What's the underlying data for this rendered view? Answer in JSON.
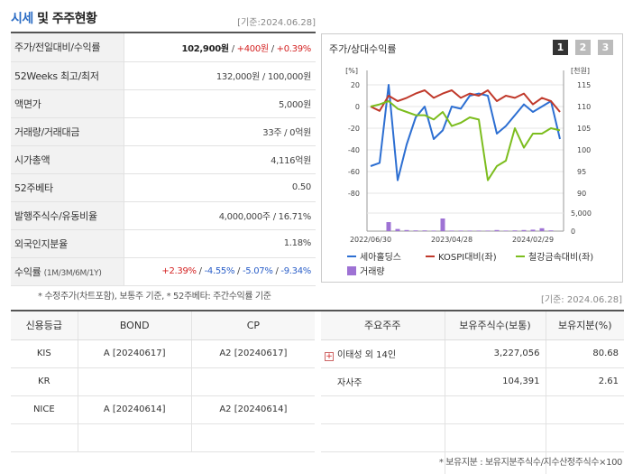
{
  "header": {
    "title_part1": "시세",
    "title_part2": " 및 주주현황",
    "date": "[기준:2024.06.28]"
  },
  "quote_rows": [
    {
      "key": "주가/전일대비/수익률",
      "price": "102,900원",
      "sep1": " / ",
      "change": "+400원",
      "sep2": " / ",
      "pct": "+0.39%"
    },
    {
      "key": "52Weeks 최고/최저",
      "value": "132,000원 / 100,000원"
    },
    {
      "key": "액면가",
      "value": "5,000원"
    },
    {
      "key": "거래량/거래대금",
      "value": "33주 / 0억원"
    },
    {
      "key": "시가총액",
      "value": "4,116억원"
    },
    {
      "key": "52주베타",
      "value": "0.50"
    },
    {
      "key": "발행주식수/유동비율",
      "value": "4,000,000주 / 16.71%"
    },
    {
      "key": "외국인지분율",
      "value": "1.18%"
    }
  ],
  "returns_row": {
    "key": "수익률",
    "key_sub": "(1M/3M/6M/1Y)",
    "r1": "+2.39%",
    "r2": "-4.55%",
    "r3": "-5.07%",
    "r4": "-9.34%",
    "sep": "/ "
  },
  "note1": "* 수정주가(차트포함), 보통주 기준, * 52주베타: 주간수익률 기준",
  "date2": "[기준: 2024.06.28]",
  "chart": {
    "title": "주가/상대수익률",
    "pages": [
      "1",
      "2",
      "3"
    ]
  },
  "chart_data": {
    "type": "line",
    "x_ticks": [
      "2022/06/30",
      "2023/04/28",
      "2024/02/29"
    ],
    "left_axis": {
      "unit": "[%]",
      "ticks": [
        "20",
        "0",
        "-20",
        "-40",
        "-60",
        "-80"
      ],
      "range": [
        -80,
        20
      ]
    },
    "right_axis": {
      "unit": "[천원]",
      "ticks": [
        "115",
        "110",
        "105",
        "100",
        "95",
        "90"
      ],
      "range": [
        90,
        115
      ]
    },
    "volume_axis": {
      "ticks": [
        "5,000",
        "0"
      ],
      "range": [
        0,
        5000
      ]
    },
    "series": [
      {
        "name": "세아홀딩스",
        "color": "#2d6fd2",
        "values": [
          -55,
          -52,
          20,
          -68,
          -35,
          -10,
          0,
          -30,
          -22,
          0,
          -2,
          10,
          12,
          10,
          -25,
          -18,
          -8,
          2,
          -5,
          0,
          5,
          -30
        ]
      },
      {
        "name": "KOSPI대비(좌)",
        "color": "#c0392b",
        "values": [
          0,
          -4,
          10,
          5,
          8,
          12,
          15,
          8,
          12,
          15,
          8,
          12,
          10,
          15,
          5,
          10,
          8,
          12,
          2,
          8,
          5,
          -5
        ]
      },
      {
        "name": "철강금속대비(좌)",
        "color": "#7cbd1e",
        "values": [
          0,
          2,
          5,
          -2,
          -5,
          -8,
          -8,
          -12,
          -5,
          -18,
          -15,
          -10,
          -12,
          -68,
          -55,
          -50,
          -20,
          -38,
          -25,
          -25,
          -20,
          -22
        ]
      }
    ],
    "volume": {
      "name": "거래량",
      "color": "#9e72d4",
      "values": [
        0,
        0,
        2500,
        600,
        300,
        200,
        200,
        150,
        3500,
        150,
        150,
        150,
        150,
        150,
        300,
        150,
        200,
        300,
        400,
        800,
        200,
        0
      ]
    }
  },
  "credit": {
    "headers": [
      "신용등급",
      "BOND",
      "CP"
    ],
    "rows": [
      [
        "KIS",
        "A  [20240617]",
        "A2  [20240617]"
      ],
      [
        "KR",
        "",
        ""
      ],
      [
        "NICE",
        "A  [20240614]",
        "A2  [20240614]"
      ],
      [
        "",
        "",
        ""
      ]
    ]
  },
  "holders": {
    "headers": [
      "주요주주",
      "보유주식수(보통)",
      "보유지분(%)"
    ],
    "rows": [
      {
        "name": "이태성 외 14인",
        "shares": "3,227,056",
        "pct": "80.68"
      },
      {
        "name": "자사주",
        "shares": "104,391",
        "pct": "2.61"
      },
      {
        "name": "",
        "shares": "",
        "pct": ""
      },
      {
        "name": "",
        "shares": "",
        "pct": ""
      },
      {
        "name": "",
        "shares": "",
        "pct": ""
      }
    ]
  },
  "note2": "* 보유지분 : 보유지분주식수/지수산정주식수×100"
}
